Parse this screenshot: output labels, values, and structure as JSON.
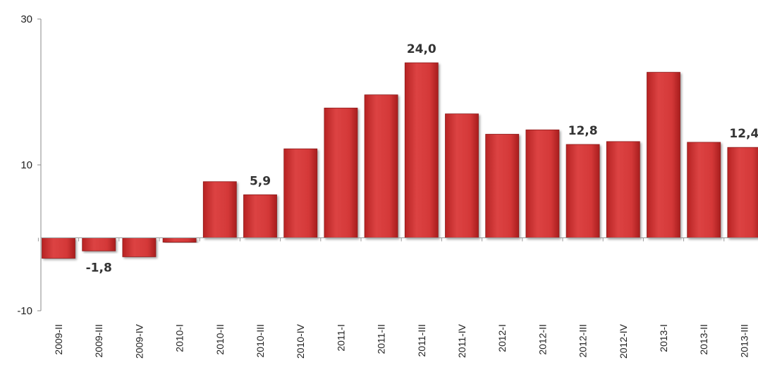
{
  "chart_data": {
    "type": "bar",
    "title": "",
    "xlabel": "",
    "ylabel": "",
    "ylim": [
      -10,
      30
    ],
    "yticks": [
      "30",
      "10",
      "-10"
    ],
    "categories": [
      "2009-II",
      "2009-III",
      "2009-IV",
      "2010-I",
      "2010-II",
      "2010-III",
      "2010-IV",
      "2011-I",
      "2011-II",
      "2011-III",
      "2011-IV",
      "2012-I",
      "2012-II",
      "2012-III",
      "2012-IV",
      "2013-I",
      "2013-II",
      "2013-III"
    ],
    "values": [
      -2.8,
      -1.8,
      -2.6,
      -0.6,
      7.7,
      5.9,
      12.2,
      17.8,
      19.6,
      24.0,
      17.0,
      14.2,
      14.8,
      12.8,
      13.2,
      22.7,
      13.1,
      12.4
    ],
    "data_labels": [
      {
        "index": 1,
        "text": "-1,8"
      },
      {
        "index": 5,
        "text": "5,9"
      },
      {
        "index": 9,
        "text": "24,0"
      },
      {
        "index": 13,
        "text": "12,8"
      },
      {
        "index": 17,
        "text": "12,4"
      }
    ],
    "grid": false,
    "legend": "none",
    "bar_color": "#d63a3a"
  }
}
